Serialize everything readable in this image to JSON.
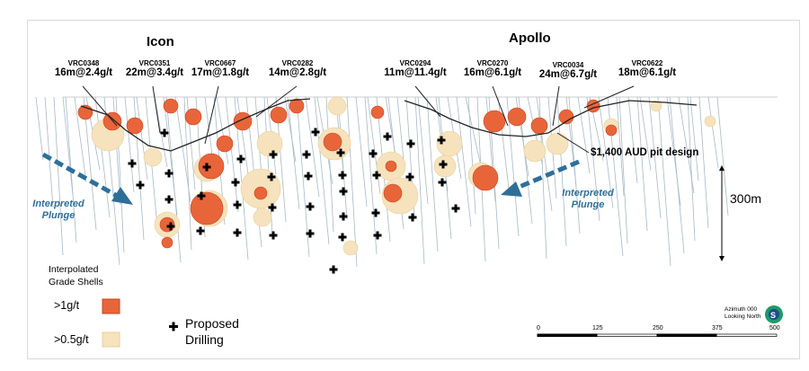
{
  "titles": {
    "icon": "Icon",
    "apollo": "Apollo"
  },
  "holes": [
    {
      "id": "VRC0348",
      "intercept": "16m@2.4g/t"
    },
    {
      "id": "VRC0351",
      "intercept": "22m@3.4g/t"
    },
    {
      "id": "VRC0667",
      "intercept": "17m@1.8g/t"
    },
    {
      "id": "VRC0282",
      "intercept": "14m@2.8g/t"
    },
    {
      "id": "VRC0294",
      "intercept": "11m@11.4g/t"
    },
    {
      "id": "VRC0270",
      "intercept": "16m@6.1g/t"
    },
    {
      "id": "VRC0034",
      "intercept": "24m@6.7g/t"
    },
    {
      "id": "VRC0622",
      "intercept": "18m@6.1g/t"
    }
  ],
  "annotations": {
    "pit_design": "$1,400 AUD pit design",
    "depth_scale": "300m",
    "plunge_left": "Interpreted\nPlunge",
    "plunge_right": "Interpreted\nPlunge"
  },
  "legend": {
    "title_line1": "Interpolated",
    "title_line2": "Grade Shells",
    "high_grade": ">1g/t",
    "low_grade": ">0.5g/t",
    "drilling_line1": "Proposed",
    "drilling_line2": "Drilling",
    "colors": {
      "high_grade": "#e8653a",
      "low_grade": "#f6e3bd",
      "plunge_arrow": "#2e6f9a"
    }
  },
  "orientation": {
    "azimuth": "Azimuth 000",
    "looking": "Looking North"
  },
  "scale_bar": {
    "ticks": [
      "0",
      "125",
      "250",
      "375",
      "500"
    ]
  }
}
